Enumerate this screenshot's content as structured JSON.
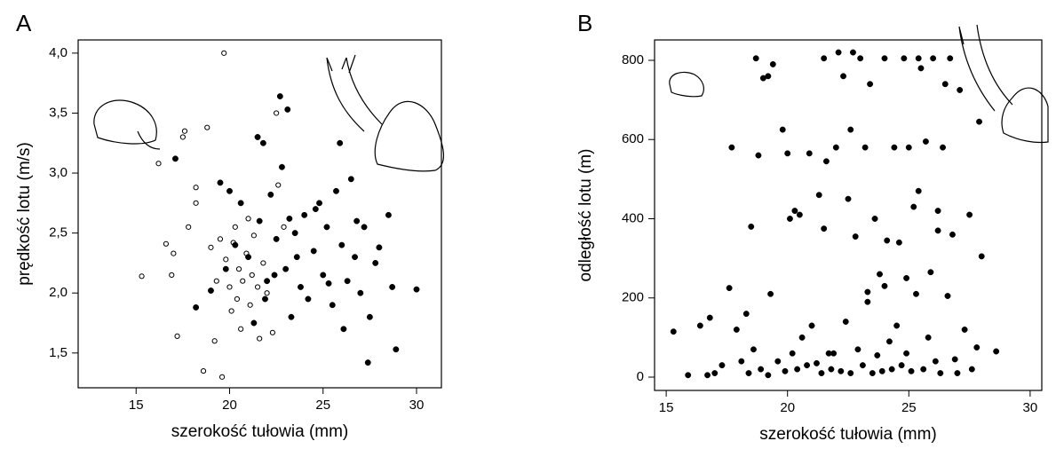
{
  "chart_data": [
    {
      "type": "scatter",
      "panel_label": "A",
      "x_label": "szerokość tułowia (mm)",
      "y_label": "prędkość lotu (m/s)",
      "xlim": [
        11.9,
        31.33
      ],
      "ylim": [
        1.21,
        4.11
      ],
      "xticks": [
        15,
        20,
        25,
        30
      ],
      "yticks": [
        {
          "value": 1.5,
          "label": "1,5"
        },
        {
          "value": 2.0,
          "label": "2,0"
        },
        {
          "value": 2.5,
          "label": "2,5"
        },
        {
          "value": 3.0,
          "label": "3,0"
        },
        {
          "value": 3.5,
          "label": "3,5"
        },
        {
          "value": 4.0,
          "label": "4,0"
        }
      ],
      "grid": false,
      "series": [
        {
          "color": "#000000",
          "marker": "open",
          "x": [
            15.3,
            16.2,
            16.6,
            17.0,
            17.2,
            17.5,
            17.8,
            18.2,
            18.6,
            18.8,
            19.0,
            19.2,
            19.5,
            19.6,
            19.7,
            19.8,
            20.0,
            20.1,
            20.2,
            20.3,
            20.5,
            20.6,
            20.7,
            20.9,
            21.0,
            21.1,
            21.2,
            21.3,
            21.5,
            21.6,
            21.8,
            22.0,
            22.3,
            22.6,
            22.5,
            22.9,
            18.2,
            17.6,
            19.3,
            20.4,
            16.9
          ],
          "values": [
            2.14,
            3.08,
            2.41,
            2.33,
            1.64,
            3.3,
            2.55,
            2.75,
            1.35,
            3.38,
            2.38,
            1.6,
            2.45,
            1.3,
            4.0,
            2.28,
            2.05,
            1.85,
            2.42,
            2.55,
            2.2,
            1.7,
            2.1,
            2.33,
            2.62,
            1.9,
            2.15,
            2.48,
            2.05,
            1.62,
            2.25,
            2.0,
            1.67,
            2.9,
            3.5,
            2.55,
            2.88,
            3.35,
            2.1,
            1.95,
            2.15
          ]
        },
        {
          "color": "#000000",
          "marker": "filled",
          "x": [
            17.1,
            18.2,
            19.0,
            19.5,
            19.8,
            20.0,
            20.3,
            20.6,
            21.0,
            21.3,
            21.5,
            21.6,
            21.8,
            22.0,
            22.2,
            22.5,
            22.7,
            22.8,
            23.0,
            23.1,
            23.3,
            23.5,
            23.8,
            24.0,
            24.2,
            24.5,
            24.8,
            25.0,
            25.2,
            25.5,
            25.7,
            25.9,
            26.0,
            26.1,
            26.3,
            26.5,
            26.7,
            27.0,
            27.2,
            27.4,
            27.5,
            27.8,
            28.0,
            28.5,
            28.7,
            28.9,
            30.0,
            22.4,
            23.6,
            24.6,
            25.3,
            26.8,
            21.9,
            23.2
          ],
          "values": [
            3.12,
            1.88,
            2.02,
            2.92,
            2.2,
            2.85,
            2.4,
            2.75,
            2.3,
            1.75,
            3.3,
            2.6,
            3.25,
            2.1,
            2.82,
            2.45,
            3.64,
            3.05,
            2.2,
            3.53,
            1.8,
            2.5,
            2.05,
            2.65,
            1.95,
            2.35,
            2.75,
            2.15,
            2.55,
            1.9,
            2.85,
            3.25,
            2.4,
            1.7,
            2.1,
            2.95,
            2.3,
            2.0,
            2.55,
            1.42,
            1.8,
            2.25,
            2.38,
            2.65,
            2.05,
            1.53,
            2.03,
            2.15,
            2.3,
            2.7,
            2.08,
            2.6,
            1.95,
            2.62
          ]
        }
      ]
    },
    {
      "type": "scatter",
      "panel_label": "B",
      "x_label": "szerokość tułowia (mm)",
      "y_label": "odległość lotu (m)",
      "xlim": [
        14.52,
        30.48
      ],
      "ylim": [
        -33.6,
        851.5
      ],
      "xticks": [
        15,
        20,
        25,
        30
      ],
      "yticks": [
        0,
        200,
        400,
        600,
        800
      ],
      "grid": false,
      "series": [
        {
          "color": "#000000",
          "marker": "filled",
          "x": [
            15.3,
            15.9,
            16.4,
            16.7,
            16.8,
            17.0,
            17.3,
            17.6,
            17.7,
            17.9,
            18.1,
            18.3,
            18.4,
            18.6,
            18.7,
            18.8,
            18.9,
            19.0,
            19.2,
            19.3,
            19.4,
            19.6,
            19.8,
            19.9,
            20.0,
            20.2,
            20.3,
            20.4,
            20.5,
            20.6,
            20.8,
            20.9,
            21.0,
            21.2,
            21.3,
            21.4,
            21.5,
            21.6,
            21.7,
            21.8,
            22.0,
            22.1,
            22.2,
            22.3,
            22.4,
            22.5,
            22.6,
            22.7,
            22.8,
            22.9,
            23.0,
            23.1,
            23.2,
            23.3,
            23.4,
            23.5,
            23.6,
            23.7,
            23.8,
            23.9,
            24.0,
            24.1,
            24.2,
            24.3,
            24.4,
            24.5,
            24.6,
            24.7,
            24.8,
            24.9,
            25.0,
            25.1,
            25.2,
            25.3,
            25.4,
            25.5,
            25.6,
            25.7,
            25.8,
            25.9,
            26.0,
            26.1,
            26.2,
            26.3,
            26.4,
            26.5,
            26.6,
            26.7,
            26.8,
            26.9,
            27.0,
            27.1,
            27.3,
            27.5,
            27.6,
            27.8,
            27.9,
            28.0,
            28.6,
            19.2,
            21.5,
            22.6,
            24.0,
            25.4,
            26.2,
            20.1,
            23.3,
            24.9,
            21.9,
            18.5
          ],
          "values": [
            115,
            5,
            130,
            5,
            150,
            10,
            30,
            225,
            580,
            120,
            40,
            160,
            10,
            70,
            805,
            560,
            20,
            755,
            5,
            210,
            790,
            40,
            625,
            15,
            565,
            60,
            420,
            20,
            410,
            100,
            30,
            565,
            130,
            35,
            460,
            10,
            805,
            545,
            60,
            20,
            580,
            820,
            15,
            760,
            140,
            450,
            10,
            820,
            355,
            70,
            805,
            30,
            580,
            190,
            740,
            10,
            400,
            55,
            260,
            15,
            805,
            345,
            90,
            20,
            580,
            130,
            340,
            30,
            805,
            60,
            580,
            15,
            430,
            210,
            805,
            780,
            20,
            595,
            100,
            265,
            805,
            40,
            370,
            10,
            580,
            740,
            205,
            805,
            360,
            45,
            10,
            725,
            120,
            410,
            20,
            75,
            645,
            305,
            65,
            760,
            375,
            625,
            230,
            470,
            420,
            400,
            215,
            250,
            60,
            380
          ]
        }
      ]
    }
  ]
}
